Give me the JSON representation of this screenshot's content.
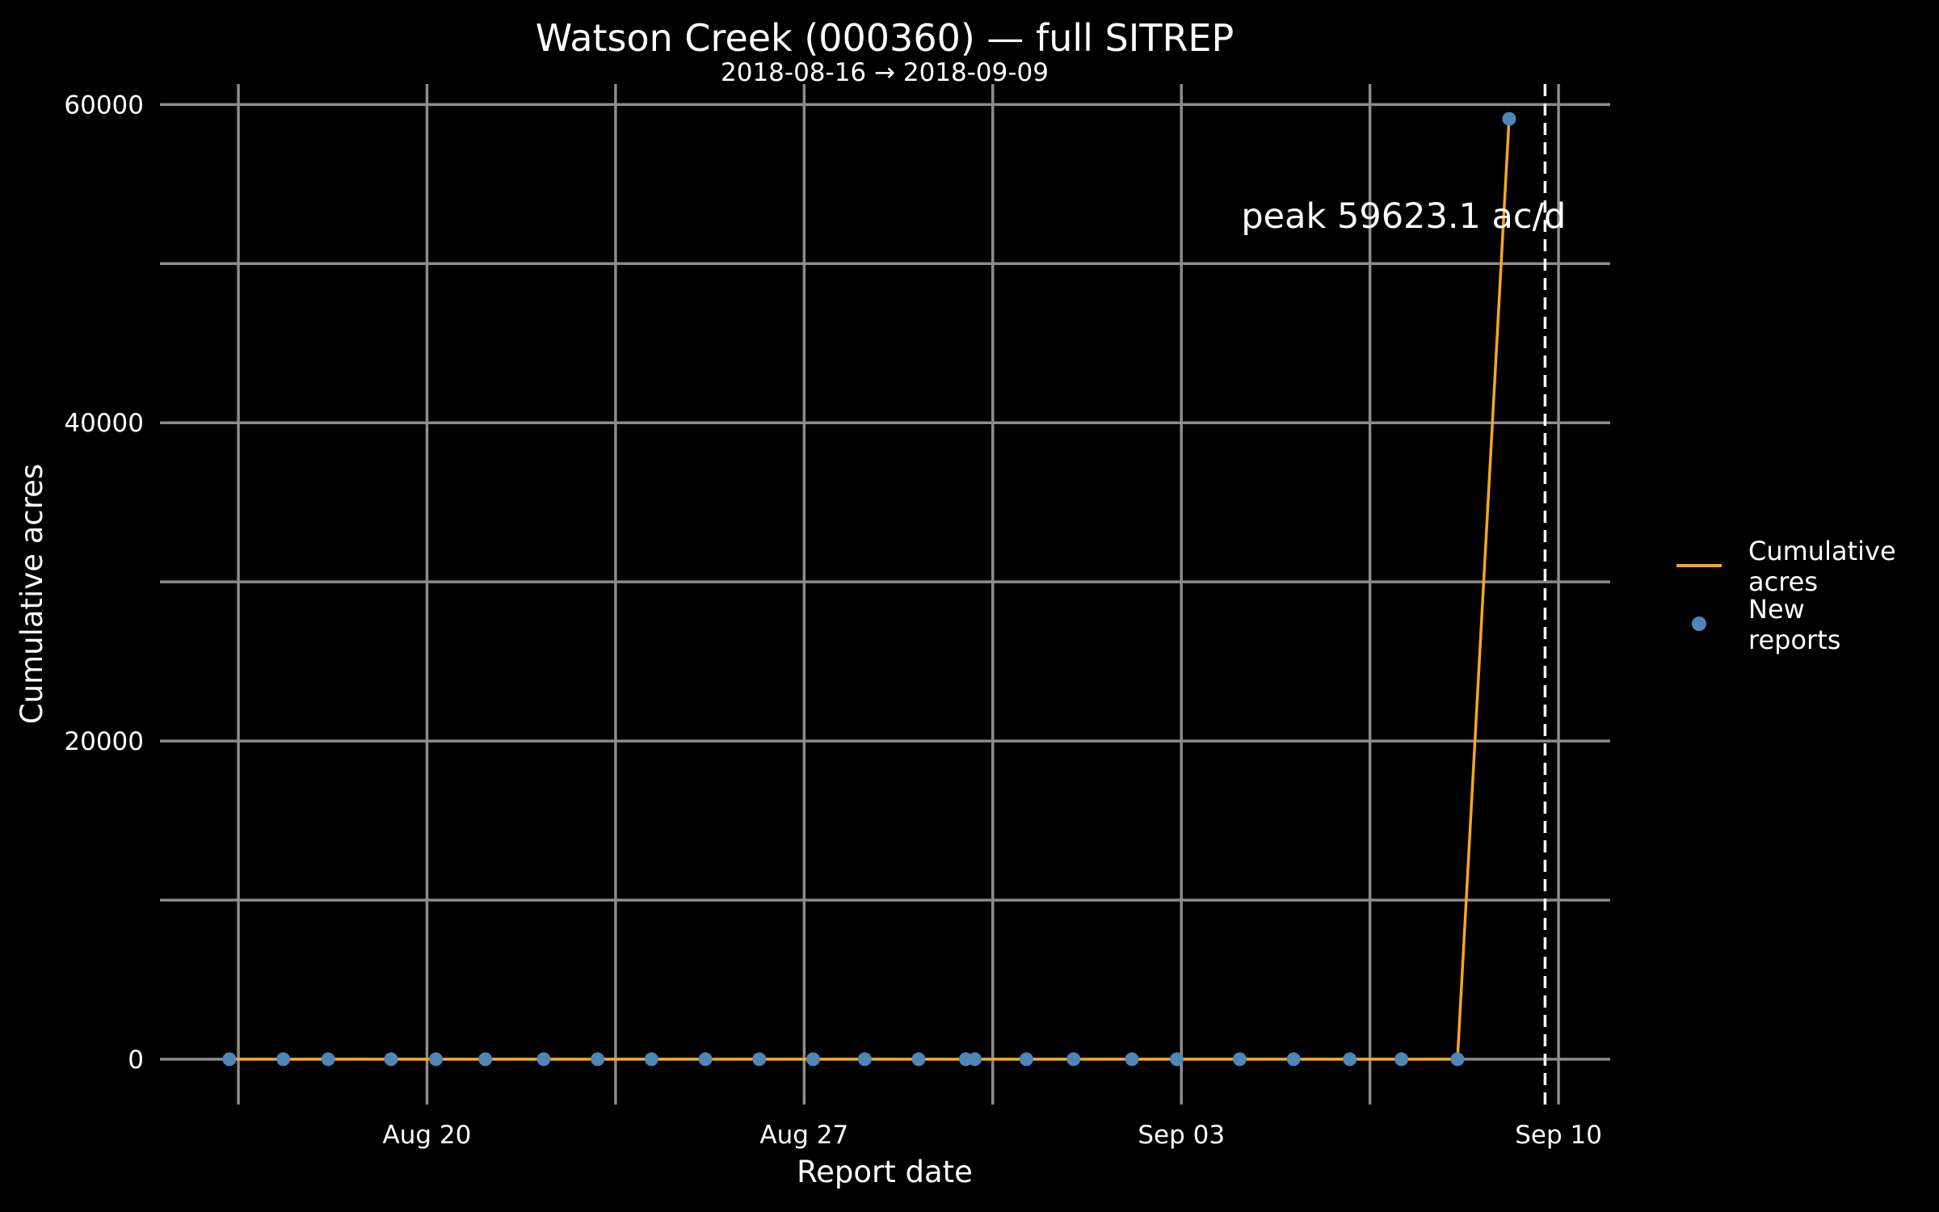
{
  "chart_data": {
    "type": "line",
    "title": "Watson Creek (000360) — full SITREP",
    "subtitle": "2018-08-16 → 2018-09-09",
    "xlabel": "Report date",
    "ylabel": "Cumulative acres",
    "xlim": [
      "2018-08-15T00:00",
      "2018-09-10T23:00"
    ],
    "ylim": [
      -3000,
      62000
    ],
    "x_ticks": [
      {
        "date": "2018-08-20",
        "label": "Aug 20"
      },
      {
        "date": "2018-08-27",
        "label": "Aug 27"
      },
      {
        "date": "2018-09-03",
        "label": "Sep 03"
      },
      {
        "date": "2018-09-10",
        "label": "Sep 10"
      }
    ],
    "x_minor_grid": [
      "2018-08-16T12:00",
      "2018-08-23T12:00",
      "2018-08-30T12:00",
      "2018-09-06T12:00"
    ],
    "y_ticks": [
      0,
      20000,
      40000,
      60000
    ],
    "y_minor_grid": [
      10000,
      30000,
      50000
    ],
    "grid": true,
    "legend_position": "right",
    "colors": {
      "background": "#000000",
      "grid": "#8c8c8c",
      "line": "#f5a623",
      "points": "#4f86b8",
      "text": "#ffffff",
      "marker_line": "#ffffff"
    },
    "series": [
      {
        "name": "Cumulative acres",
        "kind": "line",
        "color": "#f5a623",
        "x": [
          "2018-08-16T08:00",
          "2018-08-17T08:00",
          "2018-08-18T04:00",
          "2018-08-19T08:00",
          "2018-08-20T04:00",
          "2018-08-21T02:00",
          "2018-08-22T04:00",
          "2018-08-23T04:00",
          "2018-08-24T04:00",
          "2018-08-25T04:00",
          "2018-08-26T04:00",
          "2018-08-27T04:00",
          "2018-08-28T03:00",
          "2018-08-29T03:00",
          "2018-08-30T00:00",
          "2018-08-30T04:00",
          "2018-08-31T03:00",
          "2018-09-01T00:00",
          "2018-09-02T02:00",
          "2018-09-02T22:00",
          "2018-09-04T02:00",
          "2018-09-05T02:00",
          "2018-09-06T03:00",
          "2018-09-07T02:00",
          "2018-09-08T03:00",
          "2018-09-09T02:00"
        ],
        "y": [
          0,
          0,
          0,
          0,
          0,
          0,
          0,
          0,
          0,
          0,
          0,
          0,
          0,
          0,
          0,
          0,
          0,
          0,
          0,
          0,
          0,
          0,
          0,
          0,
          0,
          59100
        ]
      },
      {
        "name": "New reports",
        "kind": "points",
        "color": "#4f86b8",
        "x": [
          "2018-08-16T08:00",
          "2018-08-17T08:00",
          "2018-08-18T04:00",
          "2018-08-19T08:00",
          "2018-08-20T04:00",
          "2018-08-21T02:00",
          "2018-08-22T04:00",
          "2018-08-23T04:00",
          "2018-08-24T04:00",
          "2018-08-25T04:00",
          "2018-08-26T04:00",
          "2018-08-27T04:00",
          "2018-08-28T03:00",
          "2018-08-29T03:00",
          "2018-08-30T00:00",
          "2018-08-30T04:00",
          "2018-08-31T03:00",
          "2018-09-01T00:00",
          "2018-09-02T02:00",
          "2018-09-02T22:00",
          "2018-09-04T02:00",
          "2018-09-05T02:00",
          "2018-09-06T03:00",
          "2018-09-07T02:00",
          "2018-09-08T03:00",
          "2018-09-09T02:00"
        ],
        "y": [
          0,
          0,
          0,
          0,
          0,
          0,
          0,
          0,
          0,
          0,
          0,
          0,
          0,
          0,
          0,
          0,
          0,
          0,
          0,
          0,
          0,
          0,
          0,
          0,
          0,
          59100
        ]
      }
    ],
    "annotations": [
      {
        "type": "vline",
        "x": "2018-09-09T18:00",
        "style": "dashed"
      },
      {
        "type": "text",
        "text": "peak 59623.1 ac/d",
        "x": "2018-09-07T03:00",
        "y": 53000
      }
    ]
  }
}
